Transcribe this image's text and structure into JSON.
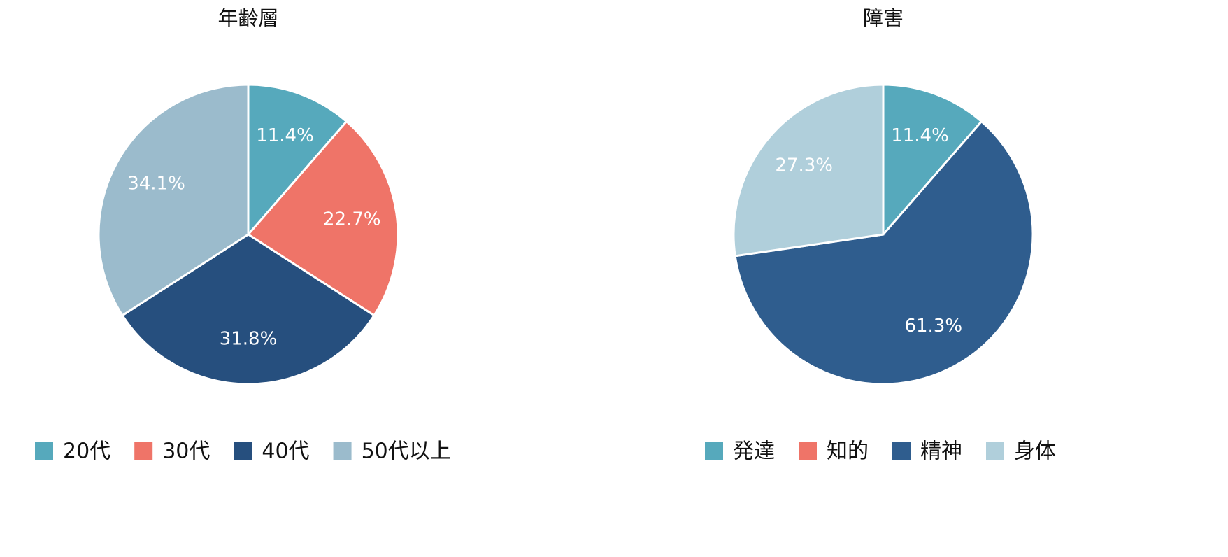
{
  "chart_data": [
    {
      "type": "pie",
      "title": "年齢層",
      "categories": [
        "20代",
        "30代",
        "40代",
        "50代以上"
      ],
      "values": [
        11.4,
        22.7,
        31.8,
        34.1
      ],
      "value_labels": [
        "11.4%",
        "22.7%",
        "31.8%",
        "34.1%"
      ],
      "colors": [
        "#56a9bc",
        "#ef7468",
        "#264f7e",
        "#9bbbcc"
      ]
    },
    {
      "type": "pie",
      "title": "障害",
      "categories": [
        "発達",
        "知的",
        "精神",
        "身体"
      ],
      "values": [
        11.4,
        0,
        61.3,
        27.3
      ],
      "value_labels": [
        "11.4%",
        null,
        "61.3%",
        "27.3%"
      ],
      "colors": [
        "#56a9bc",
        "#ef7468",
        "#2f5d8e",
        "#b0cfdb"
      ]
    }
  ]
}
